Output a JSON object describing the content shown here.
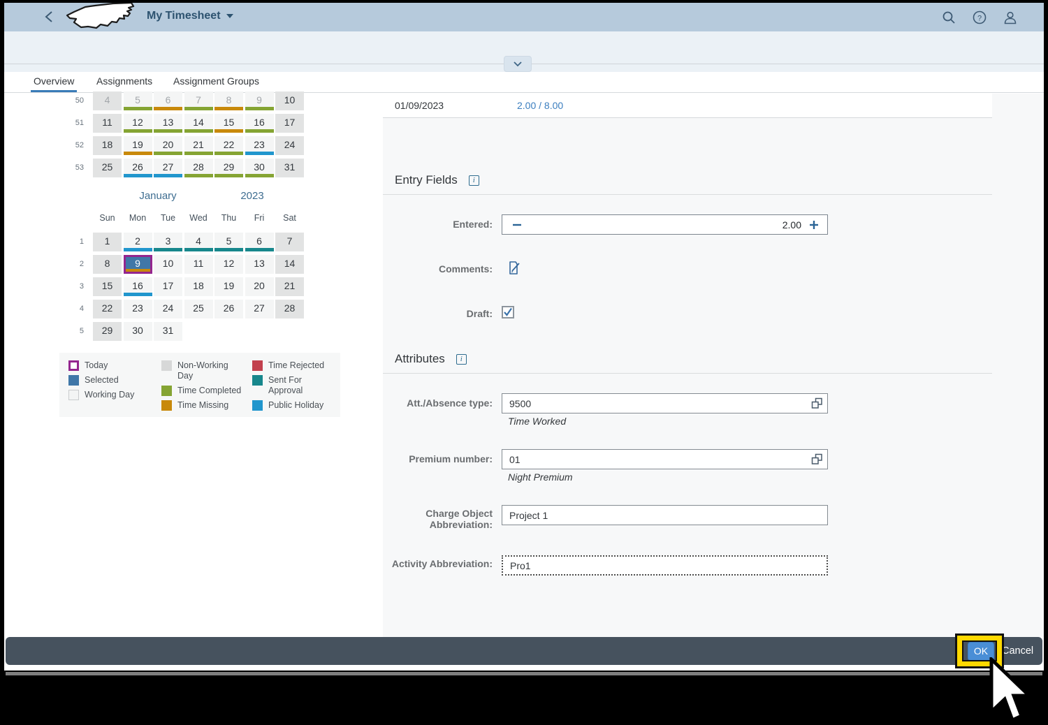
{
  "header": {
    "title": "My Timesheet"
  },
  "tabs": [
    {
      "label": "Overview",
      "active": true
    },
    {
      "label": "Assignments",
      "active": false
    },
    {
      "label": "Assignment Groups",
      "active": false
    }
  ],
  "calendar": {
    "december": {
      "weeks": [
        {
          "num": "50",
          "days": [
            {
              "d": "4",
              "weekend": true,
              "muted": true
            },
            {
              "d": "5",
              "status": "completed",
              "muted": true
            },
            {
              "d": "6",
              "status": "missing",
              "muted": true
            },
            {
              "d": "7",
              "status": "completed",
              "muted": true
            },
            {
              "d": "8",
              "status": "missing",
              "muted": true
            },
            {
              "d": "9",
              "status": "completed",
              "muted": true
            },
            {
              "d": "10",
              "weekend": true
            }
          ]
        },
        {
          "num": "51",
          "days": [
            {
              "d": "11",
              "weekend": true
            },
            {
              "d": "12",
              "status": "completed"
            },
            {
              "d": "13",
              "status": "completed"
            },
            {
              "d": "14",
              "status": "completed"
            },
            {
              "d": "15",
              "status": "missing"
            },
            {
              "d": "16",
              "status": "completed"
            },
            {
              "d": "17",
              "weekend": true
            }
          ]
        },
        {
          "num": "52",
          "days": [
            {
              "d": "18",
              "weekend": true
            },
            {
              "d": "19",
              "status": "missing"
            },
            {
              "d": "20",
              "status": "completed"
            },
            {
              "d": "21",
              "status": "completed"
            },
            {
              "d": "22",
              "status": "completed"
            },
            {
              "d": "23",
              "status": "holiday"
            },
            {
              "d": "24",
              "weekend": true
            }
          ]
        },
        {
          "num": "53",
          "days": [
            {
              "d": "25",
              "weekend": true
            },
            {
              "d": "26",
              "status": "holiday"
            },
            {
              "d": "27",
              "status": "holiday"
            },
            {
              "d": "28",
              "status": "completed"
            },
            {
              "d": "29",
              "status": "completed"
            },
            {
              "d": "30",
              "status": "completed"
            },
            {
              "d": "31",
              "weekend": true
            }
          ]
        }
      ]
    },
    "january": {
      "month": "January",
      "year": "2023",
      "dows": [
        "Sun",
        "Mon",
        "Tue",
        "Wed",
        "Thu",
        "Fri",
        "Sat"
      ],
      "weeks": [
        {
          "num": "1",
          "days": [
            {
              "d": "1",
              "weekend": true
            },
            {
              "d": "2",
              "status": "holiday"
            },
            {
              "d": "3",
              "status": "approval"
            },
            {
              "d": "4",
              "status": "approval"
            },
            {
              "d": "5",
              "status": "approval"
            },
            {
              "d": "6",
              "status": "approval"
            },
            {
              "d": "7",
              "weekend": true
            }
          ]
        },
        {
          "num": "2",
          "days": [
            {
              "d": "8",
              "weekend": true
            },
            {
              "d": "9",
              "selected": true,
              "today": true,
              "status": "missing"
            },
            {
              "d": "10"
            },
            {
              "d": "11"
            },
            {
              "d": "12"
            },
            {
              "d": "13"
            },
            {
              "d": "14",
              "weekend": true
            }
          ]
        },
        {
          "num": "3",
          "days": [
            {
              "d": "15",
              "weekend": true
            },
            {
              "d": "16",
              "status": "holiday"
            },
            {
              "d": "17"
            },
            {
              "d": "18"
            },
            {
              "d": "19"
            },
            {
              "d": "20"
            },
            {
              "d": "21",
              "weekend": true
            }
          ]
        },
        {
          "num": "4",
          "days": [
            {
              "d": "22",
              "weekend": true
            },
            {
              "d": "23"
            },
            {
              "d": "24"
            },
            {
              "d": "25"
            },
            {
              "d": "26"
            },
            {
              "d": "27"
            },
            {
              "d": "28",
              "weekend": true
            }
          ]
        },
        {
          "num": "5",
          "days": [
            {
              "d": "29",
              "weekend": true
            },
            {
              "d": "30"
            },
            {
              "d": "31"
            },
            {
              "empty": true
            },
            {
              "empty": true
            },
            {
              "empty": true
            },
            {
              "empty": true
            }
          ]
        }
      ]
    },
    "legend": {
      "columns": [
        [
          {
            "key": "today",
            "label": "Today"
          },
          {
            "key": "selected",
            "label": "Selected"
          },
          {
            "key": "working",
            "label": "Working Day"
          }
        ],
        [
          {
            "key": "nonworking",
            "label": "Non-Working Day"
          },
          {
            "key": "completed",
            "label": "Time Completed"
          },
          {
            "key": "missing",
            "label": "Time Missing"
          }
        ],
        [
          {
            "key": "rejected",
            "label": "Time Rejected"
          },
          {
            "key": "approval",
            "label": "Sent For Approval"
          },
          {
            "key": "holiday",
            "label": "Public Holiday"
          }
        ]
      ]
    }
  },
  "summary_row": {
    "date": "01/09/2023",
    "hours": "2.00 / 8.00"
  },
  "entry_fields": {
    "title": "Entry Fields",
    "entered_label": "Entered:",
    "entered_value": "2.00",
    "comments_label": "Comments:",
    "draft_label": "Draft:",
    "draft_checked": true
  },
  "attributes": {
    "title": "Attributes",
    "att_type_label": "Att./Absence type:",
    "att_type_value": "9500",
    "att_type_desc": "Time Worked",
    "premium_label": "Premium number:",
    "premium_value": "01",
    "premium_desc": "Night Premium",
    "charge_label": "Charge Object Abbreviation:",
    "charge_value": "Project 1",
    "activity_label": "Activity Abbreviation:",
    "activity_value": "Pro1"
  },
  "footer": {
    "ok_label": "OK",
    "cancel_label": "Cancel"
  },
  "colors": {
    "completed": "#85a433",
    "missing": "#c8890b",
    "rejected": "#c2414e",
    "approval": "#17878c",
    "holiday": "#2196cd",
    "selected": "#4077a8",
    "today_border": "#94268f",
    "nonworking": "#d7d8d8",
    "accent": "#3a7cb8",
    "link": "#3b7ebf",
    "ok_button": "#4a8ed6",
    "footer_bar": "#46525e",
    "highlight": "#ffd900"
  }
}
